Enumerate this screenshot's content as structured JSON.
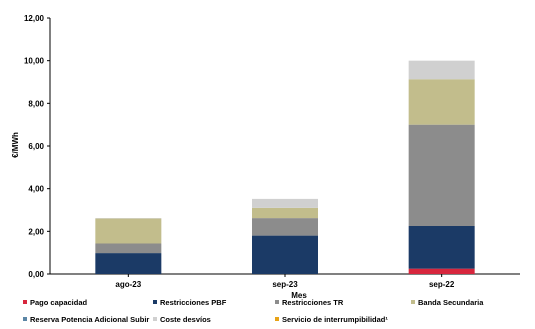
{
  "chart_data": {
    "type": "bar",
    "stacked": true,
    "xlabel": "Mes",
    "ylabel": "€/MWh",
    "ylim": [
      0,
      12
    ],
    "yticks": [
      "0,00",
      "2,00",
      "4,00",
      "6,00",
      "8,00",
      "10,00",
      "12,00"
    ],
    "grid": false,
    "legend_position": "bottom",
    "categories": [
      "ago-23",
      "sep-23",
      "sep-22"
    ],
    "series": [
      {
        "name": "Pago capacidad",
        "color": "#d7263d",
        "values": [
          0.0,
          0.0,
          0.25
        ]
      },
      {
        "name": "Restricciones PBF",
        "color": "#1b3a66",
        "values": [
          0.98,
          1.8,
          2.0
        ]
      },
      {
        "name": "Restricciones TR",
        "color": "#8c8c8c",
        "values": [
          0.45,
          0.82,
          4.75
        ]
      },
      {
        "name": "Banda Secundaria",
        "color": "#c2bd8c",
        "values": [
          1.17,
          0.48,
          2.13
        ]
      },
      {
        "name": "Reserva Potencia Adicional Subir",
        "color": "#5b86a6",
        "values": [
          0.0,
          0.0,
          0.0
        ]
      },
      {
        "name": "Coste desvíos",
        "color": "#d0d0d0",
        "values": [
          0.02,
          0.42,
          0.87
        ]
      },
      {
        "name": "Servicio de interrumpibilidad",
        "color": "#e8a317",
        "values": [
          0.0,
          0.0,
          0.0
        ]
      }
    ],
    "legend_labels": [
      "Pago capacidad",
      "Restricciones PBF",
      "Restricciones TR",
      "Banda Secundaria",
      "Reserva Potencia Adicional Subir",
      "Coste desvíos",
      "Servicio de interrumpibilidad¹"
    ]
  }
}
